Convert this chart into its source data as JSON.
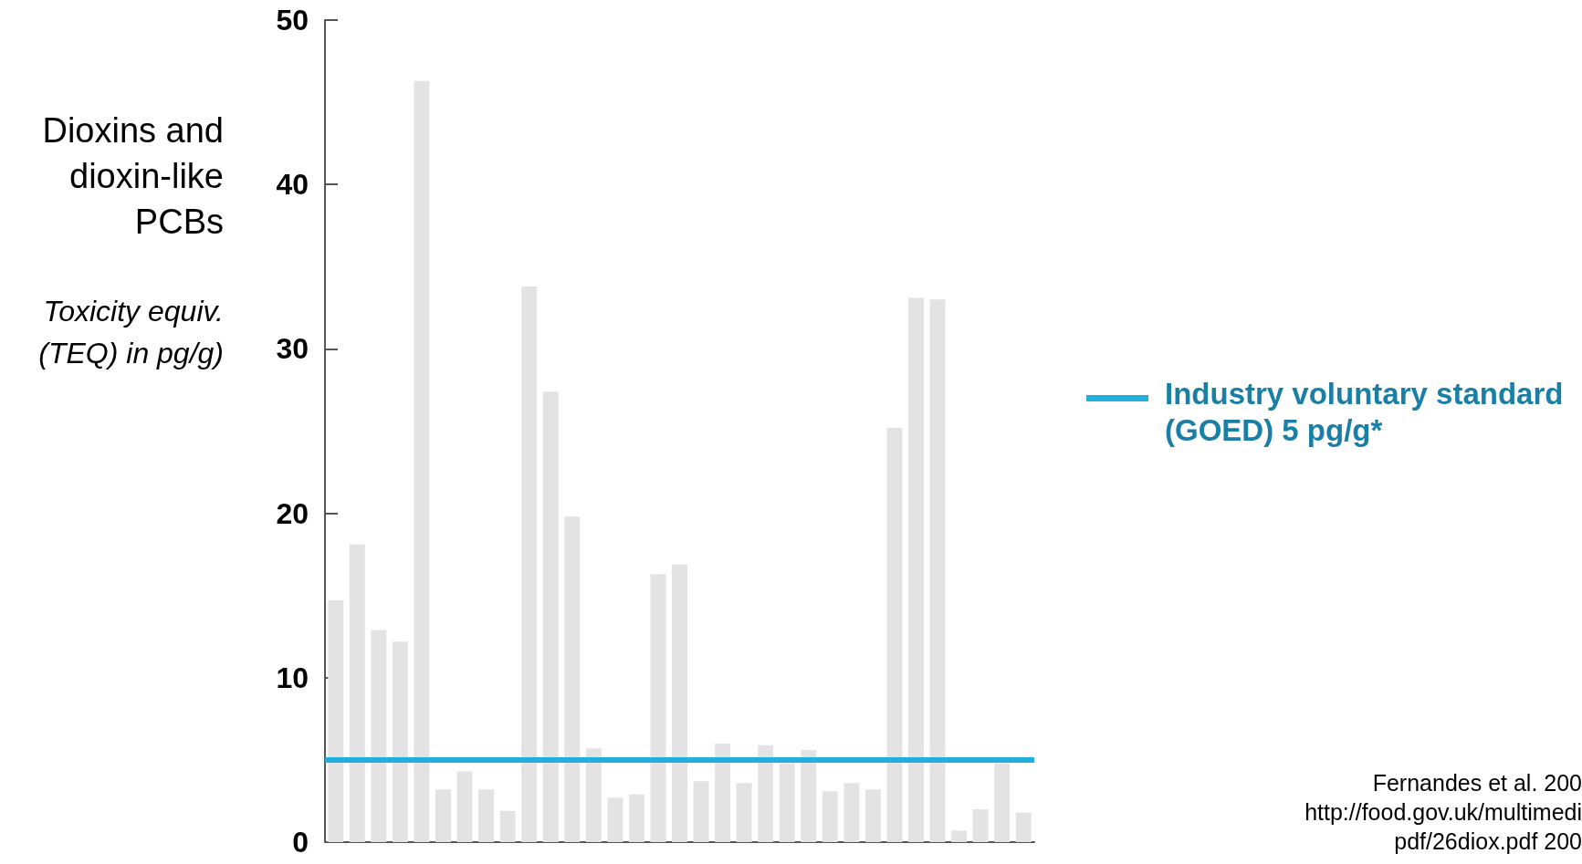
{
  "chart_data": {
    "type": "bar",
    "ylabel": "Dioxins and dioxin-like PCBs",
    "annotations": [
      "Toxicity equiv. (TEQ) in pg/g)",
      "Fernandes et al. 200",
      "http://food.gov.uk/multimedi",
      "pdf/26diox.pdf 200"
    ],
    "categories": [
      null,
      null,
      null,
      null,
      null,
      null,
      null,
      null,
      null,
      null,
      null,
      null,
      null,
      null,
      null,
      null,
      null,
      null,
      null,
      null,
      null,
      null,
      null,
      null,
      null,
      null,
      null,
      null,
      null,
      null,
      null,
      null,
      null
    ],
    "values": [
      14.7,
      18.1,
      12.9,
      12.2,
      46.3,
      3.2,
      4.3,
      3.2,
      1.9,
      33.8,
      27.4,
      19.8,
      5.7,
      2.7,
      2.9,
      16.3,
      16.9,
      3.7,
      6.0,
      3.6,
      5.9,
      4.8,
      5.6,
      3.1,
      3.6,
      3.2,
      25.2,
      33.1,
      33.0,
      0.7,
      2.0,
      4.8,
      1.8
    ],
    "color": "#e3e3e3",
    "ylim": [
      0,
      50
    ],
    "yticks": [
      0,
      10,
      20,
      30,
      40,
      50
    ],
    "grid": false,
    "ref_lines": [
      {
        "axis": "y",
        "value": 5,
        "label": "Industry voluntary standard (GOED) 5 pg/g*",
        "color": "#21b0dc"
      }
    ]
  }
}
